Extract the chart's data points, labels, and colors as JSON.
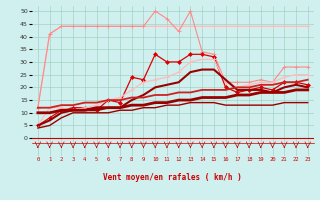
{
  "xlabel": "Vent moyen/en rafales ( km/h )",
  "bg_color": "#cff0ee",
  "grid_color": "#aaddcc",
  "x_hours": [
    0,
    1,
    2,
    3,
    4,
    5,
    6,
    7,
    8,
    9,
    10,
    11,
    12,
    13,
    14,
    15,
    16,
    17,
    18,
    19,
    20,
    21,
    22,
    23
  ],
  "ylim": [
    0,
    52
  ],
  "yticks": [
    0,
    5,
    10,
    15,
    20,
    25,
    30,
    35,
    40,
    45,
    50
  ],
  "series": {
    "gust_light_pink_flat": [
      12,
      41,
      44,
      44,
      44,
      44,
      44,
      44,
      44,
      44,
      44,
      44,
      44,
      44,
      44,
      44,
      44,
      44,
      44,
      44,
      44,
      44,
      44,
      44
    ],
    "gust_pink_peaked": [
      12,
      41,
      44,
      44,
      44,
      44,
      44,
      44,
      44,
      44,
      50,
      47,
      42,
      50,
      34,
      33,
      22,
      22,
      22,
      23,
      22,
      28,
      28,
      28
    ],
    "wind_max_red": [
      5,
      8,
      11,
      12,
      12,
      11,
      15,
      14,
      24,
      23,
      33,
      30,
      30,
      33,
      33,
      32,
      20,
      18,
      19,
      20,
      19,
      22,
      22,
      21
    ],
    "wind_avg_darkred": [
      5,
      7,
      10,
      11,
      11,
      11,
      12,
      12,
      15,
      17,
      20,
      21,
      22,
      26,
      27,
      27,
      23,
      19,
      19,
      19,
      18,
      20,
      21,
      20
    ],
    "wind_rafale_pink": [
      5,
      12,
      12,
      11,
      12,
      13,
      15,
      16,
      19,
      22,
      23,
      24,
      26,
      30,
      31,
      31,
      22,
      20,
      21,
      22,
      22,
      24,
      25,
      25
    ],
    "wind_min_darkred2": [
      4,
      5,
      8,
      10,
      10,
      10,
      10,
      11,
      11,
      12,
      12,
      13,
      13,
      14,
      14,
      14,
      13,
      13,
      13,
      13,
      13,
      14,
      14,
      14
    ],
    "trend_lower": [
      10,
      10,
      11,
      11,
      11,
      12,
      12,
      12,
      13,
      13,
      14,
      14,
      15,
      15,
      16,
      16,
      16,
      17,
      17,
      18,
      18,
      18,
      19,
      19
    ],
    "trend_upper": [
      12,
      12,
      13,
      13,
      14,
      14,
      15,
      15,
      16,
      16,
      17,
      17,
      18,
      18,
      19,
      19,
      19,
      20,
      20,
      21,
      21,
      22,
      22,
      23
    ]
  },
  "colors": {
    "light_pink": "#ffbbbb",
    "pink": "#ff8888",
    "bright_red": "#dd0000",
    "dark_red": "#990000",
    "mid_red": "#cc2222",
    "trend_red": "#bb1111"
  }
}
